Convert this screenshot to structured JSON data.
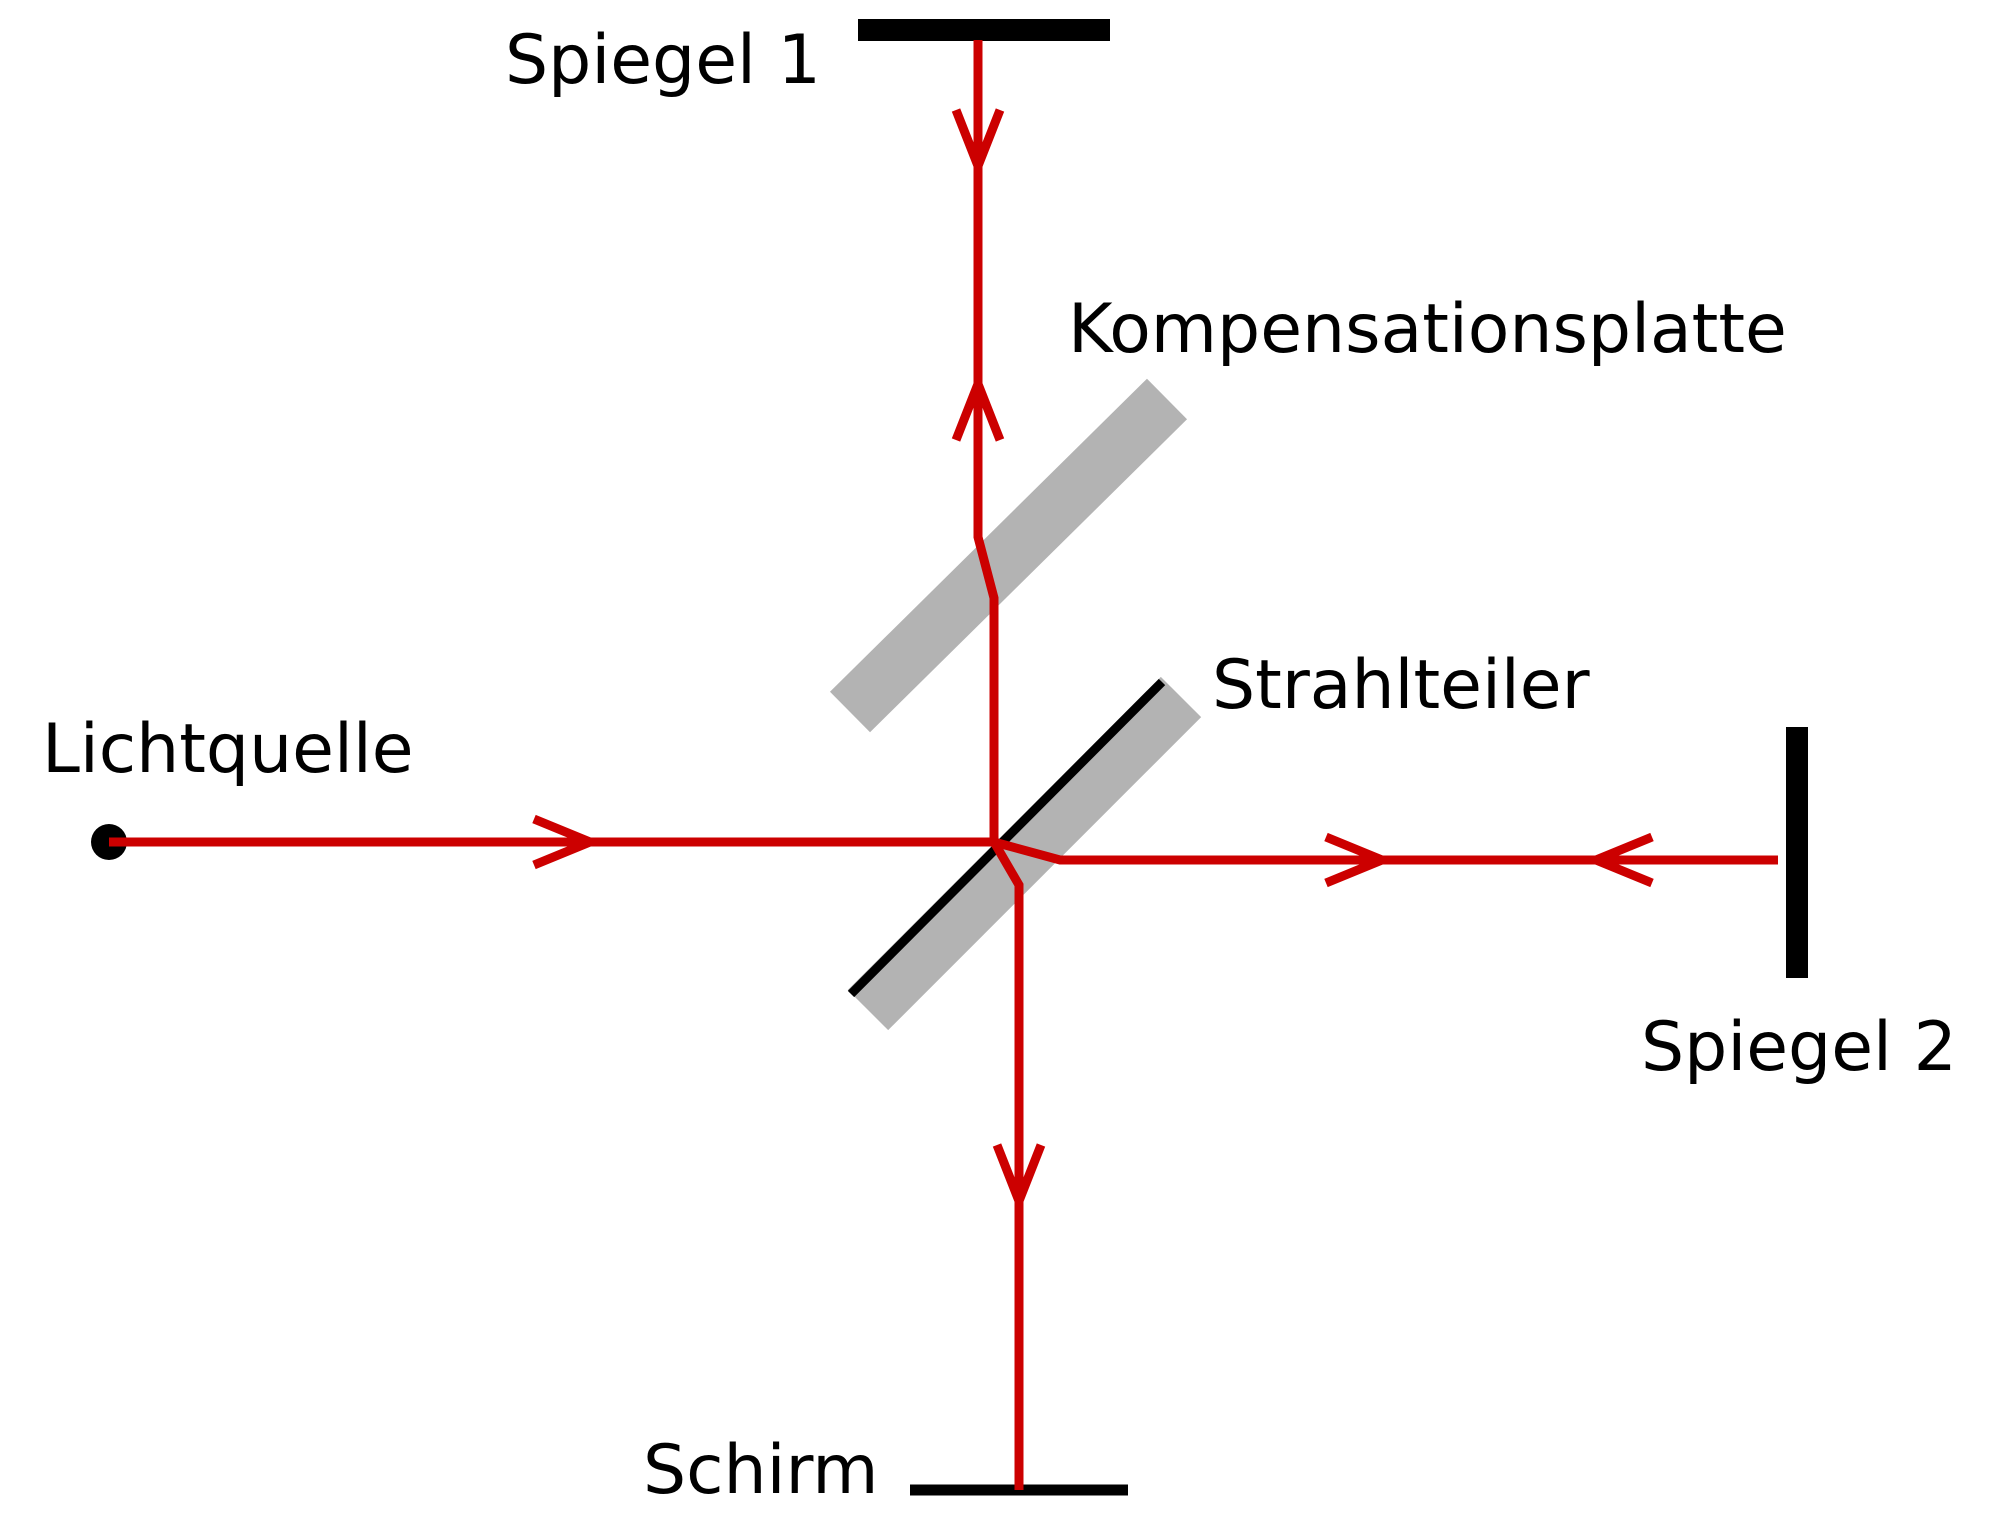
{
  "labels": {
    "mirror1": "Spiegel 1",
    "mirror2": "Spiegel 2",
    "compensator": "Kompensationsplatte",
    "splitter": "Strahlteiler",
    "source": "Lichtquelle",
    "screen": "Schirm"
  },
  "colors": {
    "beam": "#cc0000",
    "optic": "#000000",
    "plate": "#b3b3b3",
    "background": "#ffffff"
  }
}
